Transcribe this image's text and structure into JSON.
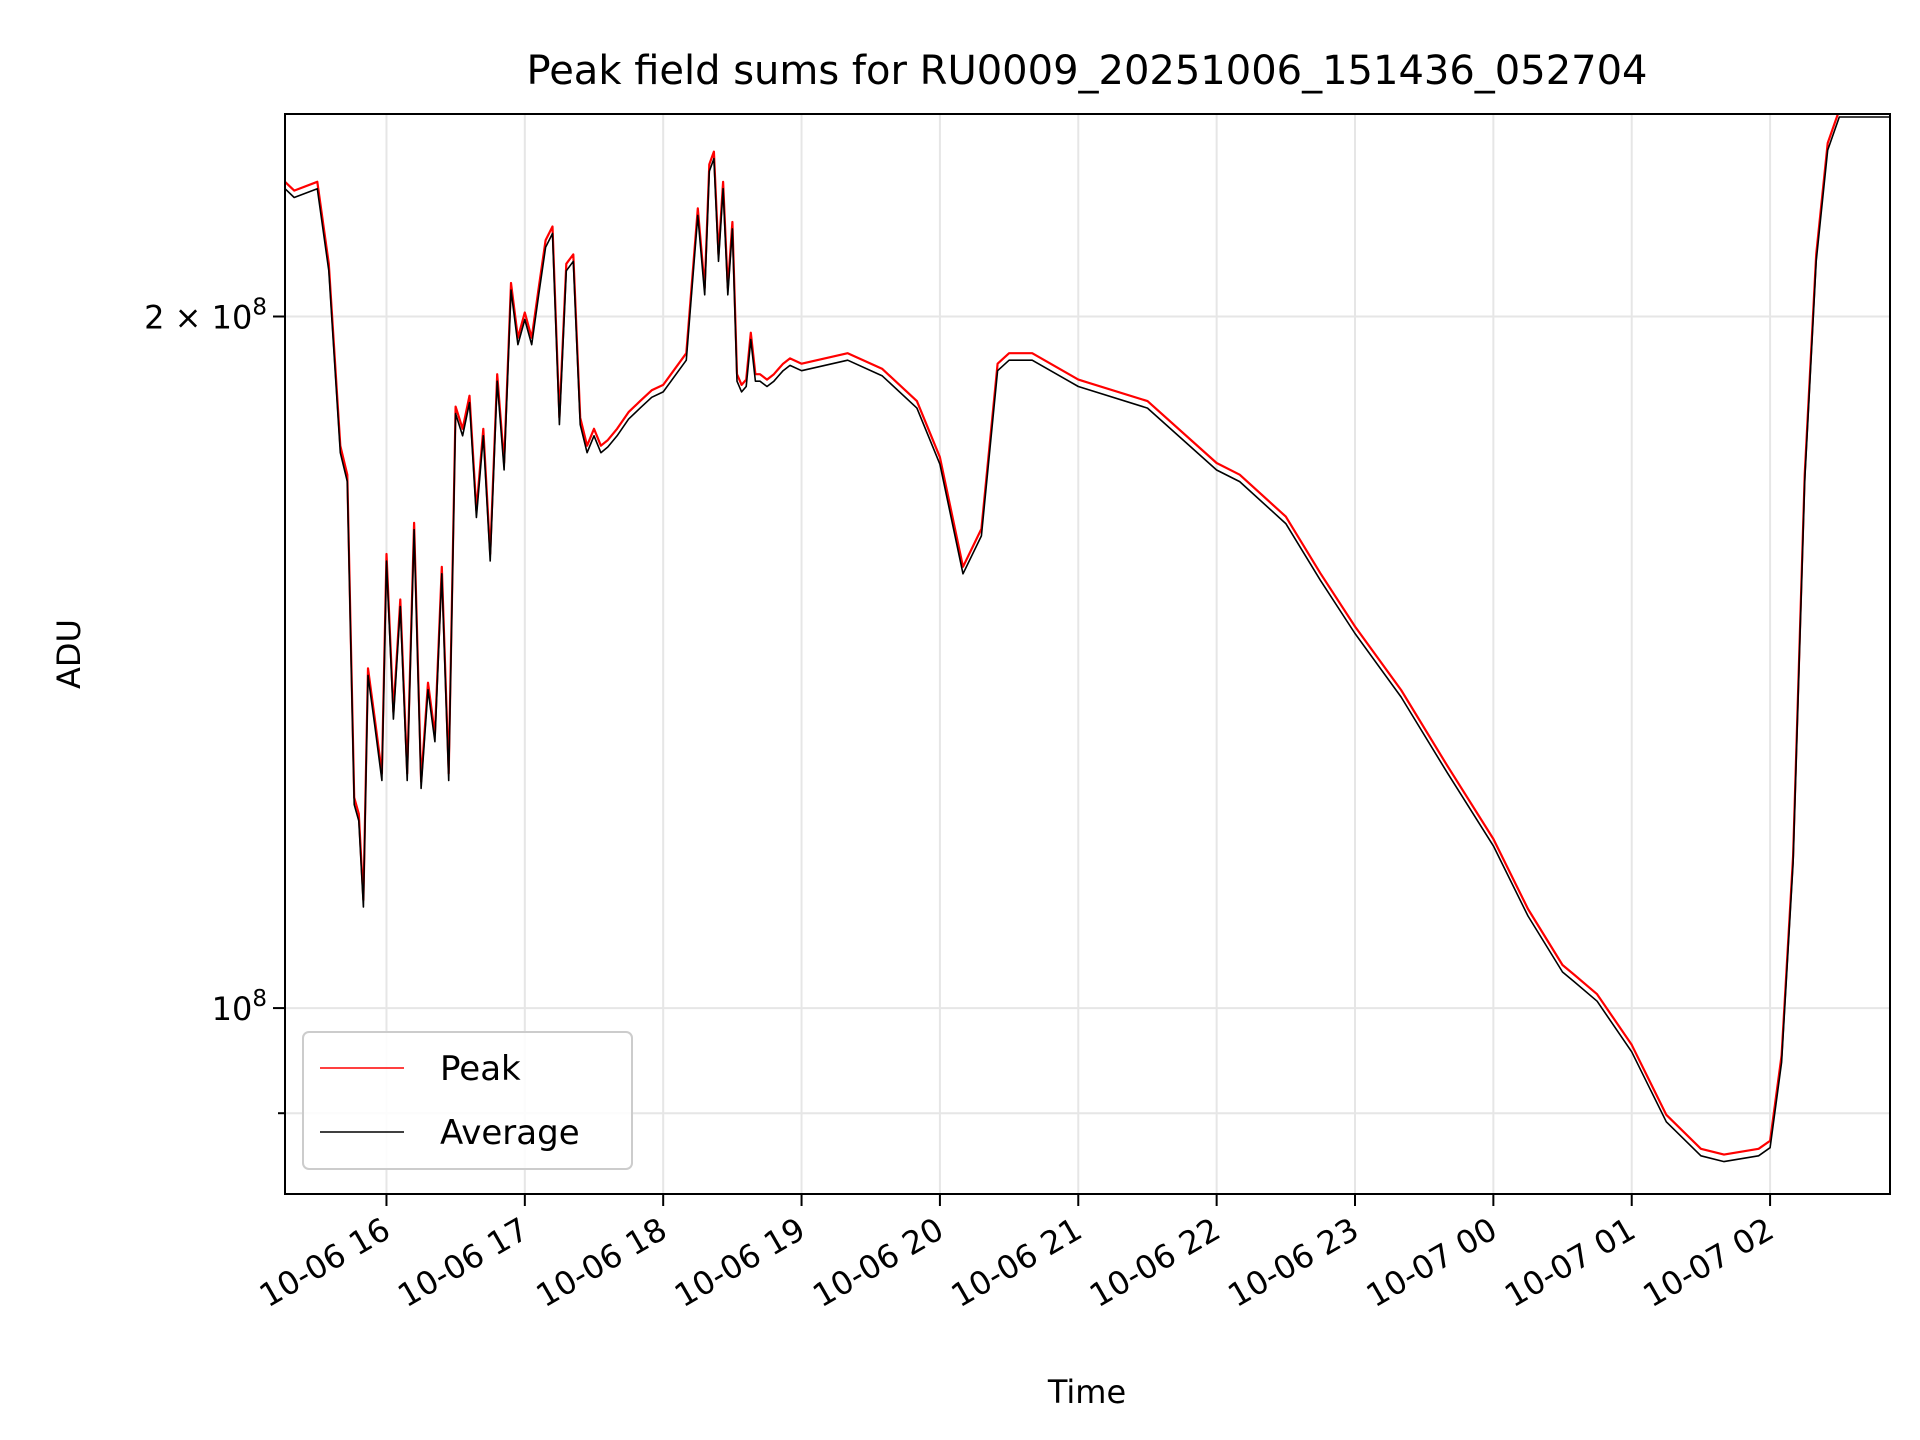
{
  "chart_data": {
    "type": "line",
    "title": "Peak field sums for RU0009_20251006_151436_052704",
    "xlabel": "Time",
    "ylabel": "ADU",
    "x_scale": "time",
    "y_scale": "log",
    "xlim": [
      "2025-10-06 15:16",
      "2025-10-07 02:52"
    ],
    "ylim": [
      83000000,
      245000000
    ],
    "y_ticks": [
      {
        "value": 200000000,
        "base": "2 × 10",
        "exp": "8"
      },
      {
        "value": 100000000,
        "base": "10",
        "exp": "8"
      }
    ],
    "x_ticks": [
      {
        "value": "2025-10-06 16:00",
        "label": "10-06 16"
      },
      {
        "value": "2025-10-06 17:00",
        "label": "10-06 17"
      },
      {
        "value": "2025-10-06 18:00",
        "label": "10-06 18"
      },
      {
        "value": "2025-10-06 19:00",
        "label": "10-06 19"
      },
      {
        "value": "2025-10-06 20:00",
        "label": "10-06 20"
      },
      {
        "value": "2025-10-06 21:00",
        "label": "10-06 21"
      },
      {
        "value": "2025-10-06 22:00",
        "label": "10-06 22"
      },
      {
        "value": "2025-10-06 23:00",
        "label": "10-06 23"
      },
      {
        "value": "2025-10-07 00:00",
        "label": "10-07 00"
      },
      {
        "value": "2025-10-07 01:00",
        "label": "10-07 01"
      },
      {
        "value": "2025-10-07 02:00",
        "label": "10-07 02"
      }
    ],
    "grid": true,
    "legend": {
      "position": "lower-left"
    },
    "series": [
      {
        "name": "Peak",
        "color": "#ff0000",
        "offset_factor": 1.004,
        "x": [
          "2025-10-06 15:16",
          "2025-10-06 15:20",
          "2025-10-06 15:30",
          "2025-10-06 15:35",
          "2025-10-06 15:40",
          "2025-10-06 15:43",
          "2025-10-06 15:46",
          "2025-10-06 15:48",
          "2025-10-06 15:50",
          "2025-10-06 15:52",
          "2025-10-06 15:55",
          "2025-10-06 15:58",
          "2025-10-06 16:00",
          "2025-10-06 16:03",
          "2025-10-06 16:06",
          "2025-10-06 16:09",
          "2025-10-06 16:12",
          "2025-10-06 16:15",
          "2025-10-06 16:18",
          "2025-10-06 16:21",
          "2025-10-06 16:24",
          "2025-10-06 16:27",
          "2025-10-06 16:30",
          "2025-10-06 16:33",
          "2025-10-06 16:36",
          "2025-10-06 16:39",
          "2025-10-06 16:42",
          "2025-10-06 16:45",
          "2025-10-06 16:48",
          "2025-10-06 16:51",
          "2025-10-06 16:54",
          "2025-10-06 16:57",
          "2025-10-06 17:00",
          "2025-10-06 17:03",
          "2025-10-06 17:06",
          "2025-10-06 17:09",
          "2025-10-06 17:12",
          "2025-10-06 17:15",
          "2025-10-06 17:18",
          "2025-10-06 17:21",
          "2025-10-06 17:24",
          "2025-10-06 17:27",
          "2025-10-06 17:30",
          "2025-10-06 17:33",
          "2025-10-06 17:36",
          "2025-10-06 17:40",
          "2025-10-06 17:45",
          "2025-10-06 17:50",
          "2025-10-06 17:55",
          "2025-10-06 18:00",
          "2025-10-06 18:10",
          "2025-10-06 18:15",
          "2025-10-06 18:18",
          "2025-10-06 18:20",
          "2025-10-06 18:22",
          "2025-10-06 18:24",
          "2025-10-06 18:26",
          "2025-10-06 18:28",
          "2025-10-06 18:30",
          "2025-10-06 18:32",
          "2025-10-06 18:34",
          "2025-10-06 18:36",
          "2025-10-06 18:38",
          "2025-10-06 18:40",
          "2025-10-06 18:42",
          "2025-10-06 18:45",
          "2025-10-06 18:48",
          "2025-10-06 18:50",
          "2025-10-06 18:52",
          "2025-10-06 18:55",
          "2025-10-06 19:00",
          "2025-10-06 19:20",
          "2025-10-06 19:35",
          "2025-10-06 19:50",
          "2025-10-06 20:00",
          "2025-10-06 20:10",
          "2025-10-06 20:18",
          "2025-10-06 20:25",
          "2025-10-06 20:30",
          "2025-10-06 20:40",
          "2025-10-06 21:00",
          "2025-10-06 21:30",
          "2025-10-06 22:00",
          "2025-10-06 22:10",
          "2025-10-06 22:30",
          "2025-10-06 22:45",
          "2025-10-06 23:00",
          "2025-10-06 23:20",
          "2025-10-06 23:40",
          "2025-10-07 00:00",
          "2025-10-07 00:15",
          "2025-10-07 00:30",
          "2025-10-07 00:35",
          "2025-10-07 00:45",
          "2025-10-07 01:00",
          "2025-10-07 01:15",
          "2025-10-07 01:30",
          "2025-10-07 01:40",
          "2025-10-07 01:55",
          "2025-10-07 02:00",
          "2025-10-07 02:05",
          "2025-10-07 02:10",
          "2025-10-07 02:15",
          "2025-10-07 02:20",
          "2025-10-07 02:25",
          "2025-10-07 02:30",
          "2025-10-07 02:35",
          "2025-10-07 02:40",
          "2025-10-07 02:45",
          "2025-10-07 02:52"
        ],
        "values": [
          228000000,
          226000000,
          228000000,
          210000000,
          175000000,
          170000000,
          123000000,
          121000000,
          111000000,
          140000000,
          133000000,
          126000000,
          157000000,
          134000000,
          150000000,
          126000000,
          162000000,
          125000000,
          138000000,
          131000000,
          155000000,
          126000000,
          182000000,
          178000000,
          184000000,
          164000000,
          178000000,
          157000000,
          188000000,
          172000000,
          206000000,
          195000000,
          200000000,
          195000000,
          205000000,
          215000000,
          218000000,
          180000000,
          210000000,
          212000000,
          180000000,
          175000000,
          178000000,
          175000000,
          176000000,
          178000000,
          181000000,
          183000000,
          185000000,
          186000000,
          192000000,
          222000000,
          205000000,
          232000000,
          235000000,
          212000000,
          228000000,
          205000000,
          219000000,
          188000000,
          186000000,
          187000000,
          196000000,
          188000000,
          188000000,
          187000000,
          188000000,
          189000000,
          190000000,
          191000000,
          190000000,
          192000000,
          189000000,
          183000000,
          173000000,
          155000000,
          161000000,
          190000000,
          192000000,
          192000000,
          187000000,
          183000000,
          172000000,
          170000000,
          163000000,
          154000000,
          146000000,
          137000000,
          127000000,
          118000000,
          110000000,
          104000000,
          103000000,
          101000000,
          96000000,
          89500000,
          86500000,
          86000000,
          86500000,
          87200000,
          95000000,
          116000000,
          170000000,
          212000000,
          237000000,
          245000000,
          245000000,
          245000000,
          245000000,
          245000000
        ]
      },
      {
        "name": "Average",
        "color": "#000000",
        "offset_factor": 0.997,
        "x": [
          "2025-10-06 15:16",
          "2025-10-06 15:20",
          "2025-10-06 15:30",
          "2025-10-06 15:35",
          "2025-10-06 15:40",
          "2025-10-06 15:43",
          "2025-10-06 15:46",
          "2025-10-06 15:48",
          "2025-10-06 15:50",
          "2025-10-06 15:52",
          "2025-10-06 15:55",
          "2025-10-06 15:58",
          "2025-10-06 16:00",
          "2025-10-06 16:03",
          "2025-10-06 16:06",
          "2025-10-06 16:09",
          "2025-10-06 16:12",
          "2025-10-06 16:15",
          "2025-10-06 16:18",
          "2025-10-06 16:21",
          "2025-10-06 16:24",
          "2025-10-06 16:27",
          "2025-10-06 16:30",
          "2025-10-06 16:33",
          "2025-10-06 16:36",
          "2025-10-06 16:39",
          "2025-10-06 16:42",
          "2025-10-06 16:45",
          "2025-10-06 16:48",
          "2025-10-06 16:51",
          "2025-10-06 16:54",
          "2025-10-06 16:57",
          "2025-10-06 17:00",
          "2025-10-06 17:03",
          "2025-10-06 17:06",
          "2025-10-06 17:09",
          "2025-10-06 17:12",
          "2025-10-06 17:15",
          "2025-10-06 17:18",
          "2025-10-06 17:21",
          "2025-10-06 17:24",
          "2025-10-06 17:27",
          "2025-10-06 17:30",
          "2025-10-06 17:33",
          "2025-10-06 17:36",
          "2025-10-06 17:40",
          "2025-10-06 17:45",
          "2025-10-06 17:50",
          "2025-10-06 17:55",
          "2025-10-06 18:00",
          "2025-10-06 18:10",
          "2025-10-06 18:15",
          "2025-10-06 18:18",
          "2025-10-06 18:20",
          "2025-10-06 18:22",
          "2025-10-06 18:24",
          "2025-10-06 18:26",
          "2025-10-06 18:28",
          "2025-10-06 18:30",
          "2025-10-06 18:32",
          "2025-10-06 18:34",
          "2025-10-06 18:36",
          "2025-10-06 18:38",
          "2025-10-06 18:40",
          "2025-10-06 18:42",
          "2025-10-06 18:45",
          "2025-10-06 18:48",
          "2025-10-06 18:50",
          "2025-10-06 18:52",
          "2025-10-06 18:55",
          "2025-10-06 19:00",
          "2025-10-06 19:20",
          "2025-10-06 19:35",
          "2025-10-06 19:50",
          "2025-10-06 20:00",
          "2025-10-06 20:10",
          "2025-10-06 20:18",
          "2025-10-06 20:25",
          "2025-10-06 20:30",
          "2025-10-06 20:40",
          "2025-10-06 21:00",
          "2025-10-06 21:30",
          "2025-10-06 22:00",
          "2025-10-06 22:10",
          "2025-10-06 22:30",
          "2025-10-06 22:45",
          "2025-10-06 23:00",
          "2025-10-06 23:20",
          "2025-10-06 23:40",
          "2025-10-07 00:00",
          "2025-10-07 00:15",
          "2025-10-07 00:30",
          "2025-10-07 00:35",
          "2025-10-07 00:45",
          "2025-10-07 01:00",
          "2025-10-07 01:15",
          "2025-10-07 01:30",
          "2025-10-07 01:40",
          "2025-10-07 01:55",
          "2025-10-07 02:00",
          "2025-10-07 02:05",
          "2025-10-07 02:10",
          "2025-10-07 02:15",
          "2025-10-07 02:20",
          "2025-10-07 02:25",
          "2025-10-07 02:30",
          "2025-10-07 02:35",
          "2025-10-07 02:40",
          "2025-10-07 02:45",
          "2025-10-07 02:52"
        ],
        "values": [
          228000000,
          226000000,
          228000000,
          210000000,
          175000000,
          170000000,
          123000000,
          121000000,
          111000000,
          140000000,
          133000000,
          126000000,
          157000000,
          134000000,
          150000000,
          126000000,
          162000000,
          125000000,
          138000000,
          131000000,
          155000000,
          126000000,
          182000000,
          178000000,
          184000000,
          164000000,
          178000000,
          157000000,
          188000000,
          172000000,
          206000000,
          195000000,
          200000000,
          195000000,
          205000000,
          215000000,
          218000000,
          180000000,
          210000000,
          212000000,
          180000000,
          175000000,
          178000000,
          175000000,
          176000000,
          178000000,
          181000000,
          183000000,
          185000000,
          186000000,
          192000000,
          222000000,
          205000000,
          232000000,
          235000000,
          212000000,
          228000000,
          205000000,
          219000000,
          188000000,
          186000000,
          187000000,
          196000000,
          188000000,
          188000000,
          187000000,
          188000000,
          189000000,
          190000000,
          191000000,
          190000000,
          192000000,
          189000000,
          183000000,
          173000000,
          155000000,
          161000000,
          190000000,
          192000000,
          192000000,
          187000000,
          183000000,
          172000000,
          170000000,
          163000000,
          154000000,
          146000000,
          137000000,
          127000000,
          118000000,
          110000000,
          104000000,
          103000000,
          101000000,
          96000000,
          89500000,
          86500000,
          86000000,
          86500000,
          87200000,
          95000000,
          116000000,
          170000000,
          212000000,
          237000000,
          245000000,
          245000000,
          245000000,
          245000000,
          245000000
        ]
      }
    ]
  }
}
